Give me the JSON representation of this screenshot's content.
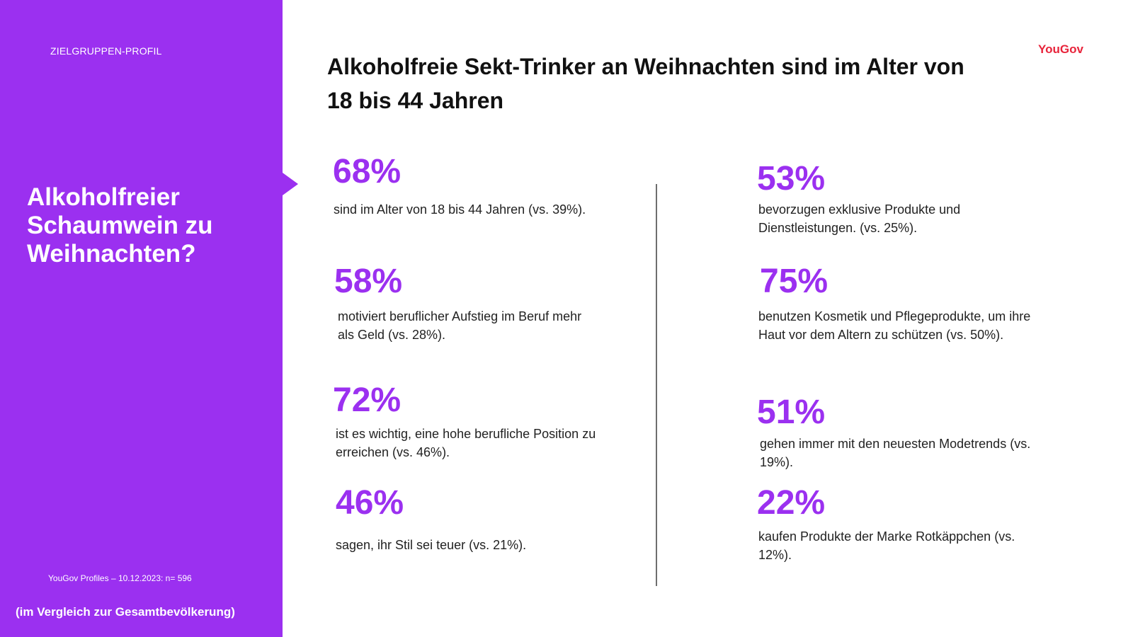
{
  "sidebar": {
    "kicker": "ZIELGRUPPEN-PROFIL",
    "title": "Alkoholfreier Schaumwein zu Weihnachten?",
    "source": "YouGov Profiles – 10.12.2023: n= 596",
    "comparison": "(im Vergleich zur Gesamtbevölkerung)",
    "accent_color": "#9b30f0"
  },
  "headline": "Alkoholfreie Sekt-Trinker an Weihnachten sind im Alter von 18 bis 44 Jahren",
  "logo": "YouGov",
  "stats": [
    {
      "value": "68%",
      "text": "sind im Alter von 18 bis 44 Jahren (vs. 39%)."
    },
    {
      "value": "58%",
      "text": "motiviert beruflicher Aufstieg im Beruf mehr als Geld (vs. 28%)."
    },
    {
      "value": "72%",
      "text": "ist es wichtig, eine hohe berufliche Position zu erreichen (vs. 46%)."
    },
    {
      "value": "46%",
      "text": "sagen, ihr Stil sei teuer (vs. 21%)."
    },
    {
      "value": "53%",
      "text": "bevorzugen exklusive Produkte und Dienstleistungen. (vs. 25%)."
    },
    {
      "value": "75%",
      "text": "benutzen Kosmetik und Pflegeprodukte, um ihre Haut vor dem Altern zu schützen (vs. 50%)."
    },
    {
      "value": "51%",
      "text": "gehen immer mit den neuesten Modetrends (vs. 19%)."
    },
    {
      "value": "22%",
      "text": "kaufen Produkte der Marke Rotkäppchen (vs. 12%)."
    }
  ]
}
